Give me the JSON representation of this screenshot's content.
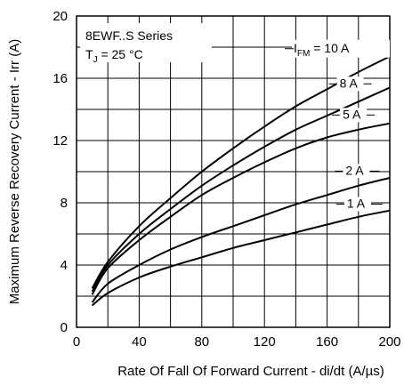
{
  "chart_data": {
    "type": "line",
    "title": "",
    "xlabel": "Rate Of Fall Of Forward Current - di/dt (A/µs)",
    "ylabel": "Maximum Reverse Recovery Current - Irr (A)",
    "xlim": [
      0,
      200
    ],
    "ylim": [
      0,
      20
    ],
    "xticks": [
      0,
      40,
      80,
      120,
      160,
      200
    ],
    "yticks": [
      0,
      4,
      8,
      12,
      16,
      20
    ],
    "grid": true,
    "annotation": {
      "series_name": "8EWF..S Series",
      "temp_prefix": "T",
      "temp_sub": "J",
      "temp_value": " = 25 °C"
    },
    "series": [
      {
        "name": "I FM = 10 A",
        "label_main": "I",
        "label_sub": "FM",
        "label_rest": " = 10 A",
        "x": [
          10,
          20,
          40,
          60,
          80,
          100,
          120,
          140,
          160,
          180,
          200
        ],
        "y": [
          2.5,
          4.2,
          6.5,
          8.3,
          10.0,
          11.5,
          12.9,
          14.2,
          15.3,
          16.4,
          17.4
        ]
      },
      {
        "name": "8 A",
        "label_main": "8 A",
        "x": [
          10,
          20,
          40,
          60,
          80,
          100,
          120,
          140,
          160,
          180,
          200
        ],
        "y": [
          2.3,
          4.0,
          6.0,
          7.6,
          9.1,
          10.4,
          11.6,
          12.7,
          13.6,
          14.5,
          15.4
        ]
      },
      {
        "name": "5 A",
        "label_main": "5 A",
        "x": [
          10,
          20,
          40,
          60,
          80,
          100,
          120,
          140,
          160,
          180,
          200
        ],
        "y": [
          2.1,
          3.8,
          5.6,
          7.1,
          8.5,
          9.6,
          10.6,
          11.5,
          12.2,
          12.7,
          13.1
        ]
      },
      {
        "name": "2 A",
        "label_main": "2 A",
        "x": [
          10,
          20,
          40,
          60,
          80,
          100,
          120,
          140,
          160,
          180,
          200
        ],
        "y": [
          1.6,
          2.8,
          4.0,
          5.0,
          5.8,
          6.5,
          7.2,
          7.9,
          8.5,
          9.1,
          9.6
        ]
      },
      {
        "name": "1 A",
        "label_main": "1 A",
        "x": [
          10,
          20,
          40,
          60,
          80,
          100,
          120,
          140,
          160,
          180,
          200
        ],
        "y": [
          1.4,
          2.2,
          3.2,
          3.9,
          4.5,
          5.1,
          5.6,
          6.1,
          6.6,
          7.1,
          7.5
        ]
      }
    ]
  }
}
